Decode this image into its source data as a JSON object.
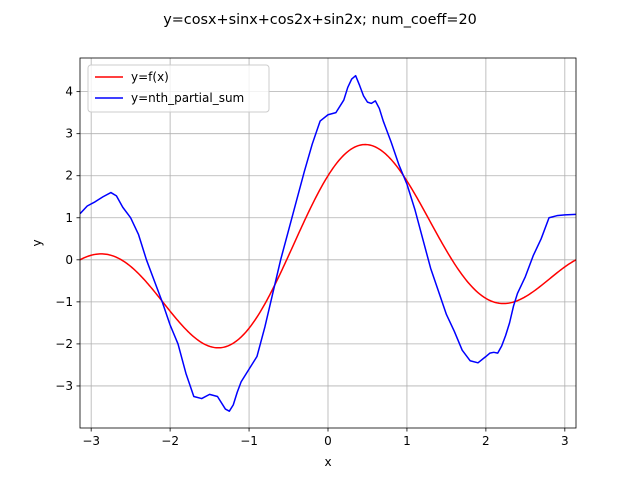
{
  "chart_data": {
    "type": "line",
    "title": "y=cosx+sinx+cos2x+sin2x; num_coeff=20",
    "xlabel": "x",
    "ylabel": "y",
    "xlim": [
      -3.14159,
      3.14159
    ],
    "ylim": [
      -4.0,
      4.8
    ],
    "xticks": [
      -3,
      -2,
      -1,
      0,
      1,
      2,
      3
    ],
    "yticks": [
      -3,
      -2,
      -1,
      0,
      1,
      2,
      3,
      4
    ],
    "grid": true,
    "legend_position": "upper-left",
    "series": [
      {
        "name": "y=f(x)",
        "color": "#ff0000",
        "formula": "cos(x)+sin(x)+cos(2x)+sin(2x)"
      },
      {
        "name": "y=nth_partial_sum",
        "color": "#0000ff",
        "x": [
          -3.14,
          -3.05,
          -2.95,
          -2.85,
          -2.75,
          -2.68,
          -2.6,
          -2.5,
          -2.4,
          -2.3,
          -2.2,
          -2.1,
          -2.0,
          -1.9,
          -1.8,
          -1.7,
          -1.6,
          -1.5,
          -1.4,
          -1.3,
          -1.25,
          -1.2,
          -1.15,
          -1.1,
          -1.0,
          -0.9,
          -0.8,
          -0.7,
          -0.6,
          -0.5,
          -0.4,
          -0.3,
          -0.2,
          -0.1,
          0.0,
          0.1,
          0.2,
          0.25,
          0.3,
          0.35,
          0.4,
          0.45,
          0.5,
          0.55,
          0.6,
          0.65,
          0.7,
          0.8,
          0.9,
          1.0,
          1.1,
          1.2,
          1.3,
          1.4,
          1.5,
          1.6,
          1.7,
          1.8,
          1.9,
          2.0,
          2.05,
          2.1,
          2.15,
          2.2,
          2.25,
          2.3,
          2.35,
          2.4,
          2.5,
          2.6,
          2.7,
          2.8,
          2.9,
          3.0,
          3.14
        ],
        "y": [
          1.1,
          1.28,
          1.38,
          1.5,
          1.6,
          1.52,
          1.25,
          1.0,
          0.6,
          0.0,
          -0.5,
          -1.0,
          -1.55,
          -2.0,
          -2.7,
          -3.25,
          -3.3,
          -3.2,
          -3.25,
          -3.55,
          -3.6,
          -3.45,
          -3.15,
          -2.9,
          -2.6,
          -2.3,
          -1.6,
          -0.8,
          0.0,
          0.7,
          1.4,
          2.1,
          2.75,
          3.3,
          3.45,
          3.5,
          3.8,
          4.1,
          4.3,
          4.38,
          4.15,
          3.9,
          3.75,
          3.72,
          3.78,
          3.6,
          3.3,
          2.8,
          2.25,
          1.8,
          1.2,
          0.5,
          -0.2,
          -0.75,
          -1.3,
          -1.7,
          -2.15,
          -2.4,
          -2.45,
          -2.3,
          -2.22,
          -2.2,
          -2.22,
          -2.05,
          -1.8,
          -1.5,
          -1.1,
          -0.8,
          -0.4,
          0.1,
          0.5,
          1.0,
          1.05,
          1.07,
          1.08
        ]
      }
    ]
  }
}
